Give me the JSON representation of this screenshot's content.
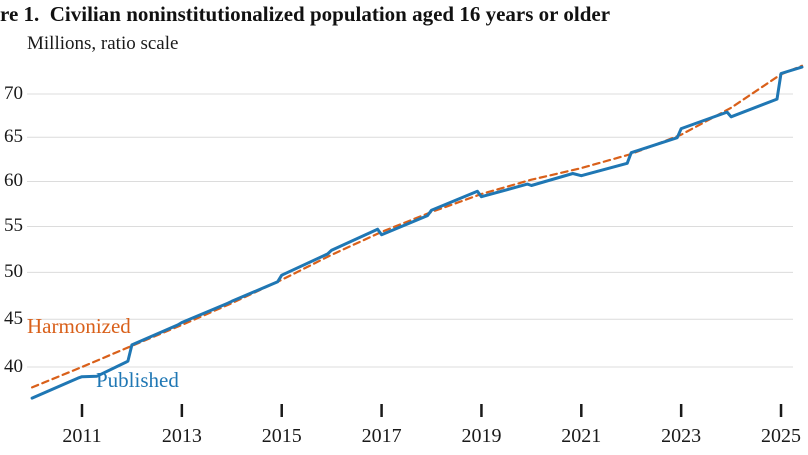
{
  "title": "re 1.  Civilian noninstitutionalized population aged 16 years or older",
  "subtitle": "Millions, ratio scale",
  "colors": {
    "published": "#1f77b4",
    "harmonized": "#d9601a",
    "grid": "#dcdcdc",
    "tick": "#1a1a1a",
    "text": "#1a1a1a"
  },
  "chart_data": {
    "type": "line",
    "title": "re 1.  Civilian noninstitutionalized population aged 16 years or older",
    "ylabel": "Millions, ratio scale",
    "scale": "log",
    "grid": "horizontal",
    "legend_position": "inline-annotations",
    "xlim": [
      2009.9,
      2025.6
    ],
    "ylim": [
      236.5,
      274.5
    ],
    "x_ticks": [
      2011,
      2013,
      2015,
      2017,
      2019,
      2021,
      2023,
      2025
    ],
    "y_ticks": [
      {
        "value": 240,
        "label": "40"
      },
      {
        "value": 245,
        "label": "45"
      },
      {
        "value": 250,
        "label": "50"
      },
      {
        "value": 255,
        "label": "55"
      },
      {
        "value": 260,
        "label": "60"
      },
      {
        "value": 265,
        "label": "65"
      },
      {
        "value": 270,
        "label": "70"
      }
    ],
    "series": [
      {
        "name": "Harmonized",
        "style": "dashed",
        "color": "#d9601a",
        "points": [
          [
            2010.0,
            237.9
          ],
          [
            2011.0,
            240.0
          ],
          [
            2012.0,
            242.2
          ],
          [
            2013.0,
            244.4
          ],
          [
            2014.0,
            246.7
          ],
          [
            2015.0,
            249.2
          ],
          [
            2016.0,
            251.9
          ],
          [
            2017.0,
            254.4
          ],
          [
            2018.0,
            256.6
          ],
          [
            2019.0,
            258.6
          ],
          [
            2020.0,
            260.2
          ],
          [
            2021.0,
            261.5
          ],
          [
            2022.0,
            263.1
          ],
          [
            2023.0,
            265.3
          ],
          [
            2024.0,
            268.4
          ],
          [
            2025.0,
            272.3
          ],
          [
            2025.42,
            273.3
          ]
        ]
      },
      {
        "name": "Published",
        "style": "solid",
        "color": "#1f77b4",
        "points": [
          [
            2010.0,
            236.8
          ],
          [
            2010.92,
            238.85
          ],
          [
            2011.0,
            239.0
          ],
          [
            2011.3,
            239.05
          ],
          [
            2011.92,
            240.6
          ],
          [
            2012.0,
            242.3
          ],
          [
            2012.92,
            244.4
          ],
          [
            2013.0,
            244.65
          ],
          [
            2013.92,
            246.7
          ],
          [
            2014.0,
            246.9
          ],
          [
            2014.92,
            249.0
          ],
          [
            2015.0,
            249.7
          ],
          [
            2015.92,
            252.0
          ],
          [
            2016.0,
            252.4
          ],
          [
            2016.92,
            254.7
          ],
          [
            2017.0,
            254.1
          ],
          [
            2017.92,
            256.2
          ],
          [
            2018.0,
            256.8
          ],
          [
            2018.92,
            258.9
          ],
          [
            2019.0,
            258.3
          ],
          [
            2019.92,
            259.7
          ],
          [
            2020.0,
            259.55
          ],
          [
            2020.83,
            260.9
          ],
          [
            2021.0,
            260.65
          ],
          [
            2021.92,
            262.05
          ],
          [
            2022.0,
            263.25
          ],
          [
            2022.92,
            264.95
          ],
          [
            2023.0,
            266.0
          ],
          [
            2023.92,
            267.9
          ],
          [
            2024.0,
            267.35
          ],
          [
            2024.92,
            269.4
          ],
          [
            2025.0,
            272.4
          ],
          [
            2025.42,
            273.15
          ]
        ]
      }
    ]
  }
}
